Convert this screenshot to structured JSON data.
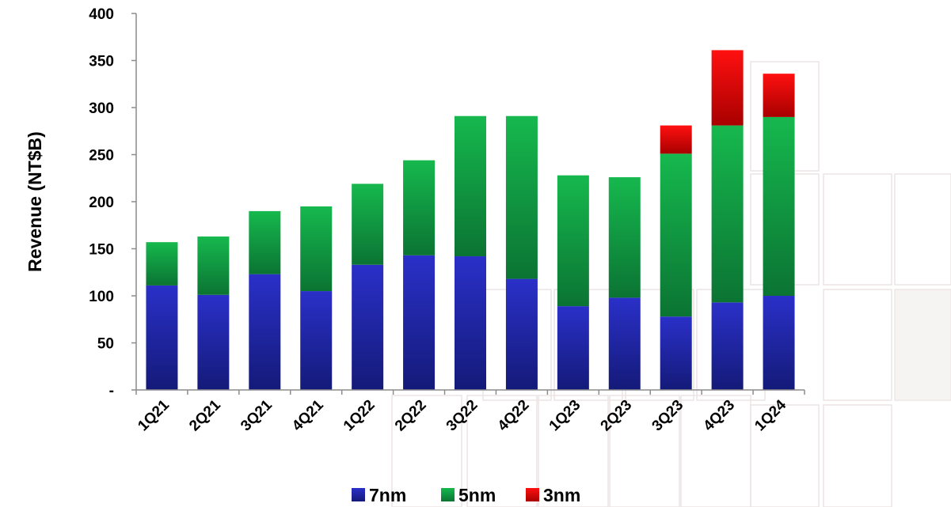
{
  "chart_data": {
    "type": "bar",
    "stacked": true,
    "categories": [
      "1Q21",
      "2Q21",
      "3Q21",
      "4Q21",
      "1Q22",
      "2Q22",
      "3Q22",
      "4Q22",
      "1Q23",
      "2Q23",
      "3Q23",
      "4Q23",
      "1Q24"
    ],
    "series": [
      {
        "name": "7nm",
        "color": "#1e23a8",
        "values": [
          111,
          101,
          123,
          105,
          133,
          143,
          142,
          118,
          89,
          98,
          78,
          93,
          100
        ]
      },
      {
        "name": "5nm",
        "color": "#129845",
        "values": [
          46,
          62,
          67,
          90,
          86,
          101,
          149,
          173,
          139,
          128,
          173,
          188,
          190
        ]
      },
      {
        "name": "3nm",
        "color": "#e00000",
        "values": [
          0,
          0,
          0,
          0,
          0,
          0,
          0,
          0,
          0,
          0,
          30,
          80,
          46
        ]
      }
    ],
    "ylabel": "Revenue (NT$B)",
    "xlabel": "",
    "ylim": [
      0,
      400
    ],
    "yticks": [
      0,
      50,
      100,
      150,
      200,
      250,
      300,
      350,
      400
    ],
    "ytick_labels": [
      "-",
      "50",
      "100",
      "150",
      "200",
      "250",
      "300",
      "350",
      "400"
    ],
    "legend_position": "bottom",
    "grid": false
  }
}
